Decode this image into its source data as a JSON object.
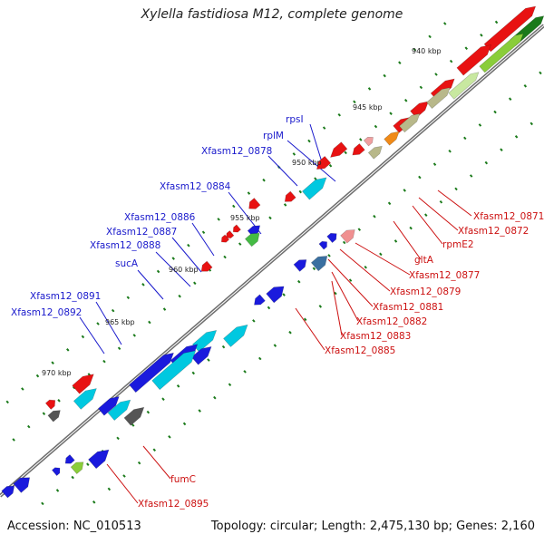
{
  "title": "Xylella fastidiosa M12, complete genome",
  "footer": {
    "accession": "Accession: NC_010513",
    "summary": "Topology: circular; Length: 2,475,130 bp; Genes: 2,160"
  },
  "colors": {
    "backbone": "#707070",
    "tick_dot": "#1a7a1a",
    "label_left": "#1a1acc",
    "label_right": "#cc1111"
  },
  "scale_ticks": [
    "940 kbp",
    "945 kbp",
    "950 kbp",
    "955 kbp",
    "960 kbp",
    "965 kbp",
    "970 kbp"
  ],
  "left_labels": [
    "rpsI",
    "rplM",
    "Xfasm12_0878",
    "Xfasm12_0884",
    "Xfasm12_0886",
    "Xfasm12_0887",
    "Xfasm12_0888",
    "sucA",
    "Xfasm12_0891",
    "Xfasm12_0892"
  ],
  "right_labels": [
    "Xfasm12_0871",
    "Xfasm12_0872",
    "rpmE2",
    "gltA",
    "Xfasm12_0877",
    "Xfasm12_0879",
    "Xfasm12_0881",
    "Xfasm12_0882",
    "Xfasm12_0883",
    "Xfasm12_0885",
    "fumC",
    "Xfasm12_0895"
  ]
}
